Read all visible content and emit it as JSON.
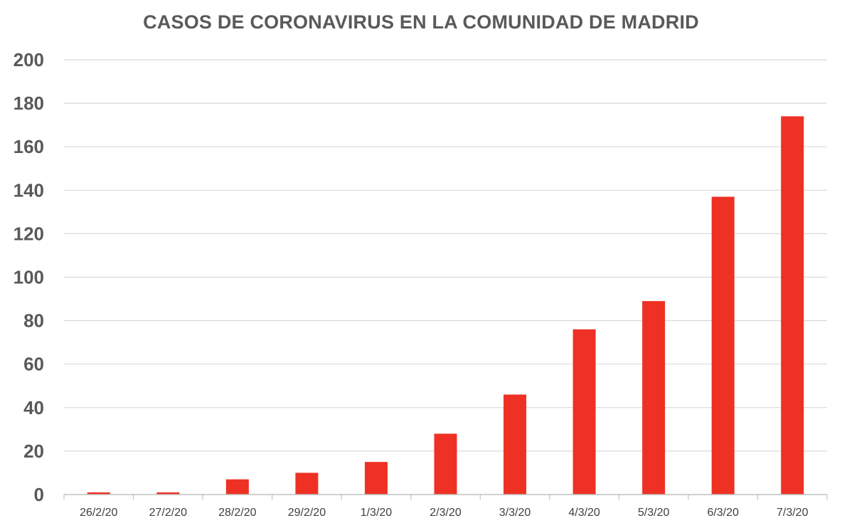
{
  "chart_data": {
    "type": "bar",
    "title": "CASOS DE CORONAVIRUS EN LA COMUNIDAD DE MADRID",
    "xlabel": "",
    "ylabel": "",
    "categories": [
      "26/2/20",
      "27/2/20",
      "28/2/20",
      "29/2/20",
      "1/3/20",
      "2/3/20",
      "3/3/20",
      "4/3/20",
      "5/3/20",
      "6/3/20",
      "7/3/20"
    ],
    "values": [
      1,
      1,
      7,
      10,
      15,
      28,
      46,
      76,
      89,
      137,
      174
    ],
    "ylim": [
      0,
      200
    ],
    "yticks": [
      0,
      20,
      40,
      60,
      80,
      100,
      120,
      140,
      160,
      180,
      200
    ],
    "grid": true,
    "legend": "none",
    "colors": {
      "bar": "#EE3124",
      "grid": "#D9D9D9",
      "axis": "#BFBFBF",
      "text": "#595959"
    }
  }
}
